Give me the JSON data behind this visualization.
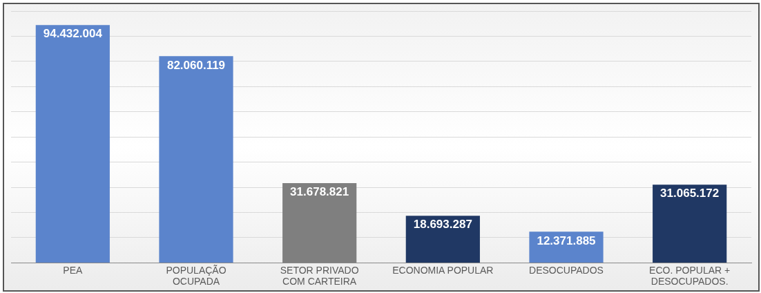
{
  "chart_data": {
    "type": "bar",
    "categories": [
      "PEA",
      "POPULAÇÃO OCUPADA",
      "SETOR PRIVADO COM CARTEIRA",
      "ECONOMIA POPULAR",
      "DESOCUPADOS",
      "ECO. POPULAR + DESOCUPADOS."
    ],
    "values": [
      94432004,
      82060119,
      31678821,
      18693287,
      12371885,
      31065172
    ],
    "colors": [
      "#5b84cc",
      "#5b84cc",
      "#7f7f7f",
      "#203864",
      "#5b84cc",
      "#203864"
    ],
    "value_labels": [
      "94.432.004",
      "82.060.119",
      "31.678.821",
      "18.693.287",
      "12.371.885",
      "31.065.172"
    ],
    "ylim": [
      0,
      100000000
    ],
    "yticks": [
      {
        "value": 0,
        "label": null
      },
      {
        "value": 10000000,
        "label": null
      },
      {
        "value": 20000000,
        "label": null
      },
      {
        "value": 30000000,
        "label": null
      },
      {
        "value": 40000000,
        "label": null
      },
      {
        "value": 50000000,
        "label": null
      },
      {
        "value": 60000000,
        "label": null
      },
      {
        "value": 70000000,
        "label": null
      },
      {
        "value": 80000000,
        "label": null
      },
      {
        "value": 90000000,
        "label": null
      },
      {
        "value": 100000000,
        "label": null
      }
    ],
    "grid": "y",
    "legend": false,
    "tick_labels": "x"
  }
}
